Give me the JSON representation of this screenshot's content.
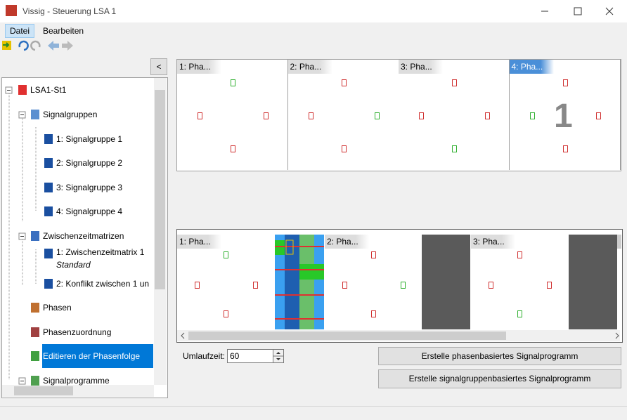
{
  "window": {
    "title": "Vissig - Steuerung LSA 1"
  },
  "menu": [
    "Datei",
    "Bearbeiten"
  ],
  "sidebar": {
    "collapse_button": "<",
    "tree": [
      {
        "label": "LSA1-St1"
      },
      {
        "label": "Signalgruppen"
      },
      {
        "label": "1: Signalgruppe 1"
      },
      {
        "label": "2: Signalgruppe 2"
      },
      {
        "label": "3: Signalgruppe 3"
      },
      {
        "label": "4: Signalgruppe 4"
      },
      {
        "label": "Zwischenzeitmatrizen"
      },
      {
        "label": "1: Zwischenzeitmatrix 1",
        "sublabel": "Standard"
      },
      {
        "label": "2: Konflikt zwischen 1 un"
      },
      {
        "label": "Phasen"
      },
      {
        "label": "Phasenzuordnung"
      },
      {
        "label": "Editieren der Phasenfolge"
      },
      {
        "label": "Signalprogramme"
      }
    ]
  },
  "phases": {
    "cards": [
      "1: Pha...",
      "2: Pha...",
      "3: Pha...",
      "4: Pha..."
    ],
    "selected_marker": "1"
  },
  "sequence": {
    "cards": [
      "1: Pha...",
      "2: Pha...",
      "3: Pha..."
    ]
  },
  "cycle": {
    "label": "Umlaufzeit:",
    "value": "60"
  },
  "buttons": [
    "Erstelle phasenbasiertes Signalprogramm",
    "Erstelle signalgruppenbasiertes Signalprogramm"
  ]
}
